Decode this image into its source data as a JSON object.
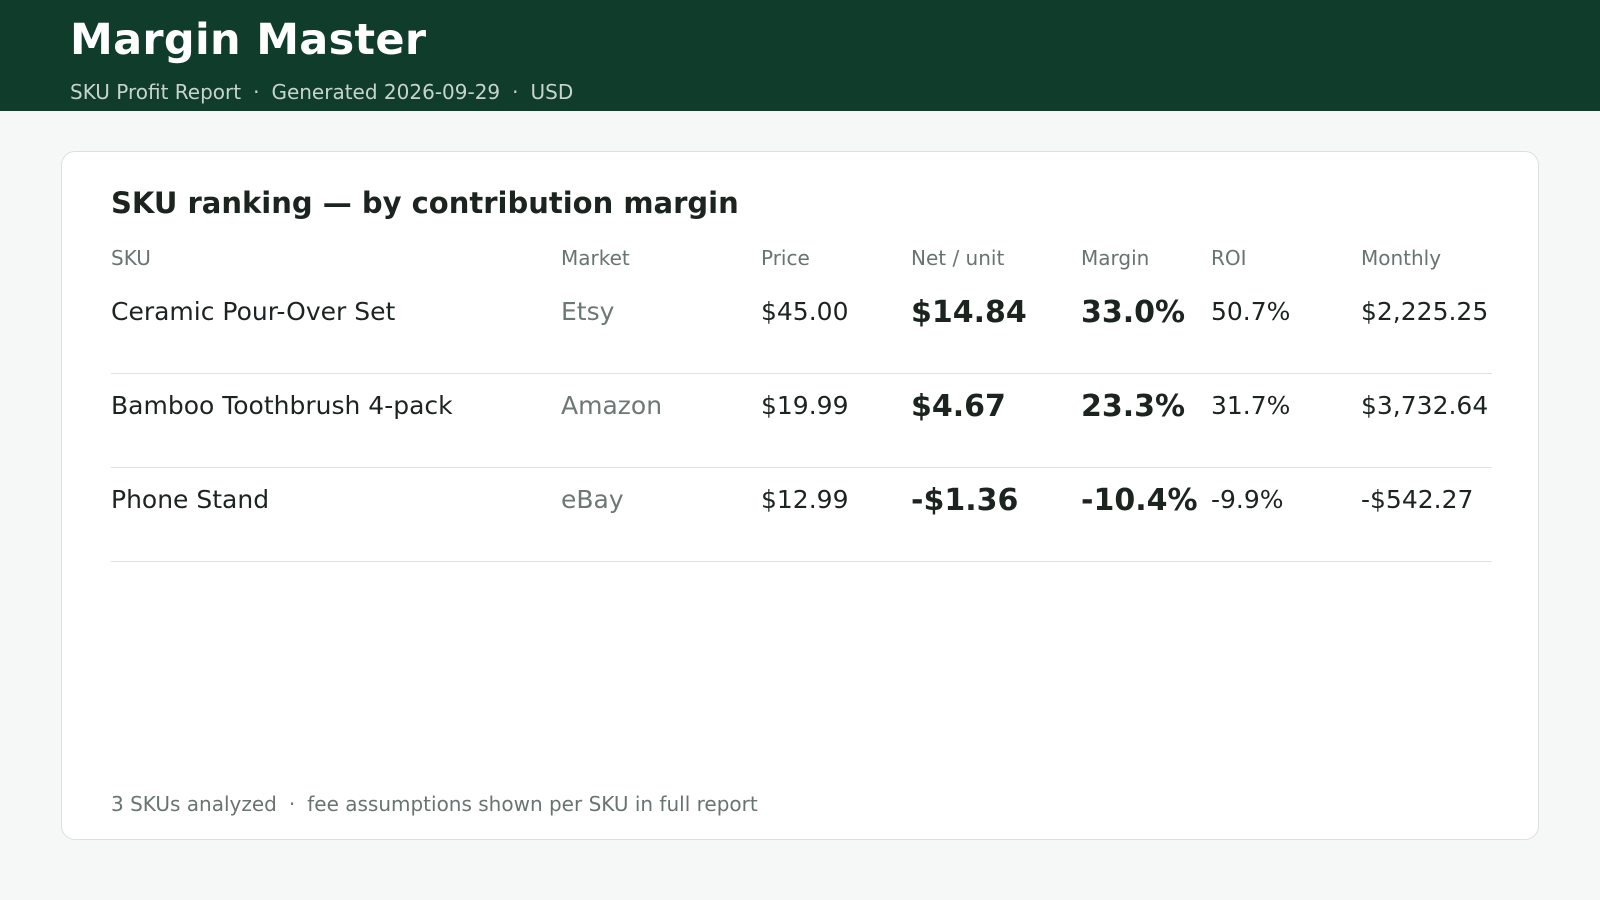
{
  "app": {
    "title": "Margin Master",
    "report_name": "SKU Profit Report",
    "generated": "Generated 2026-09-29",
    "currency": "USD",
    "separator": "·"
  },
  "card": {
    "title": "SKU ranking — by contribution margin"
  },
  "table": {
    "columns": [
      "SKU",
      "Market",
      "Price",
      "Net / unit",
      "Margin",
      "ROI",
      "Monthly"
    ],
    "rows": [
      {
        "sku": "Ceramic Pour-Over Set",
        "market": "Etsy",
        "price": "$45.00",
        "net_unit": "$14.84",
        "margin": "33.0%",
        "roi": "50.7%",
        "monthly": "$2,225.25",
        "status": "positive"
      },
      {
        "sku": "Bamboo Toothbrush 4-pack",
        "market": "Amazon",
        "price": "$19.99",
        "net_unit": "$4.67",
        "margin": "23.3%",
        "roi": "31.7%",
        "monthly": "$3,732.64",
        "status": "positive"
      },
      {
        "sku": "Phone Stand",
        "market": "eBay",
        "price": "$12.99",
        "net_unit": "-$1.36",
        "margin": "-10.4%",
        "roi": "-9.9%",
        "monthly": "-$542.27",
        "status": "negative"
      }
    ]
  },
  "footer": {
    "count": "3 SKUs analyzed",
    "note": "fee assumptions shown per SKU in full report"
  },
  "colors": {
    "header_bg": "#103c2c",
    "positive": "#137a56",
    "negative": "#b83232"
  }
}
